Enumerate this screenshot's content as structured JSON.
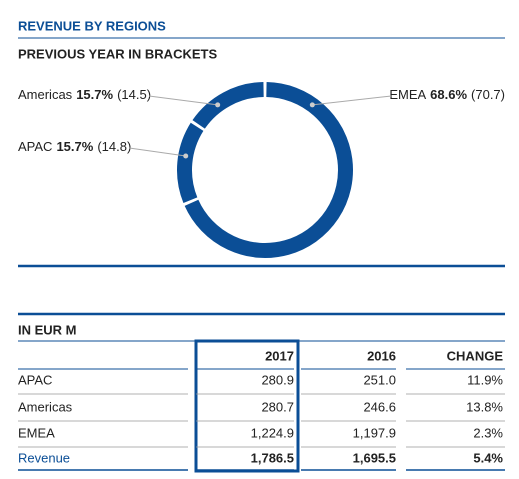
{
  "header": {
    "title": "REVENUE BY REGIONS",
    "subtitle": "PREVIOUS YEAR IN BRACKETS"
  },
  "chart_data": {
    "type": "donut",
    "categories": [
      "EMEA",
      "APAC",
      "Americas"
    ],
    "values": [
      68.6,
      15.7,
      15.7
    ],
    "value_labels": [
      "68.6%",
      "15.7%",
      "15.7%"
    ],
    "previous_labels": [
      "(70.7)",
      "(14.8)",
      "(14.5)"
    ],
    "color": "#0b4e96"
  },
  "table": {
    "unit": "IN EUR M",
    "header": [
      "2017",
      "2016",
      "CHANGE"
    ],
    "rows": [
      [
        "APAC",
        "280.9",
        "251.0",
        "11.9%"
      ],
      [
        "Americas",
        "280.7",
        "246.6",
        "13.8%"
      ],
      [
        "EMEA",
        "1,224.9",
        "1,197.9",
        "2.3%"
      ],
      [
        "Revenue",
        "1,786.5",
        "1,695.5",
        "5.4%"
      ]
    ]
  }
}
